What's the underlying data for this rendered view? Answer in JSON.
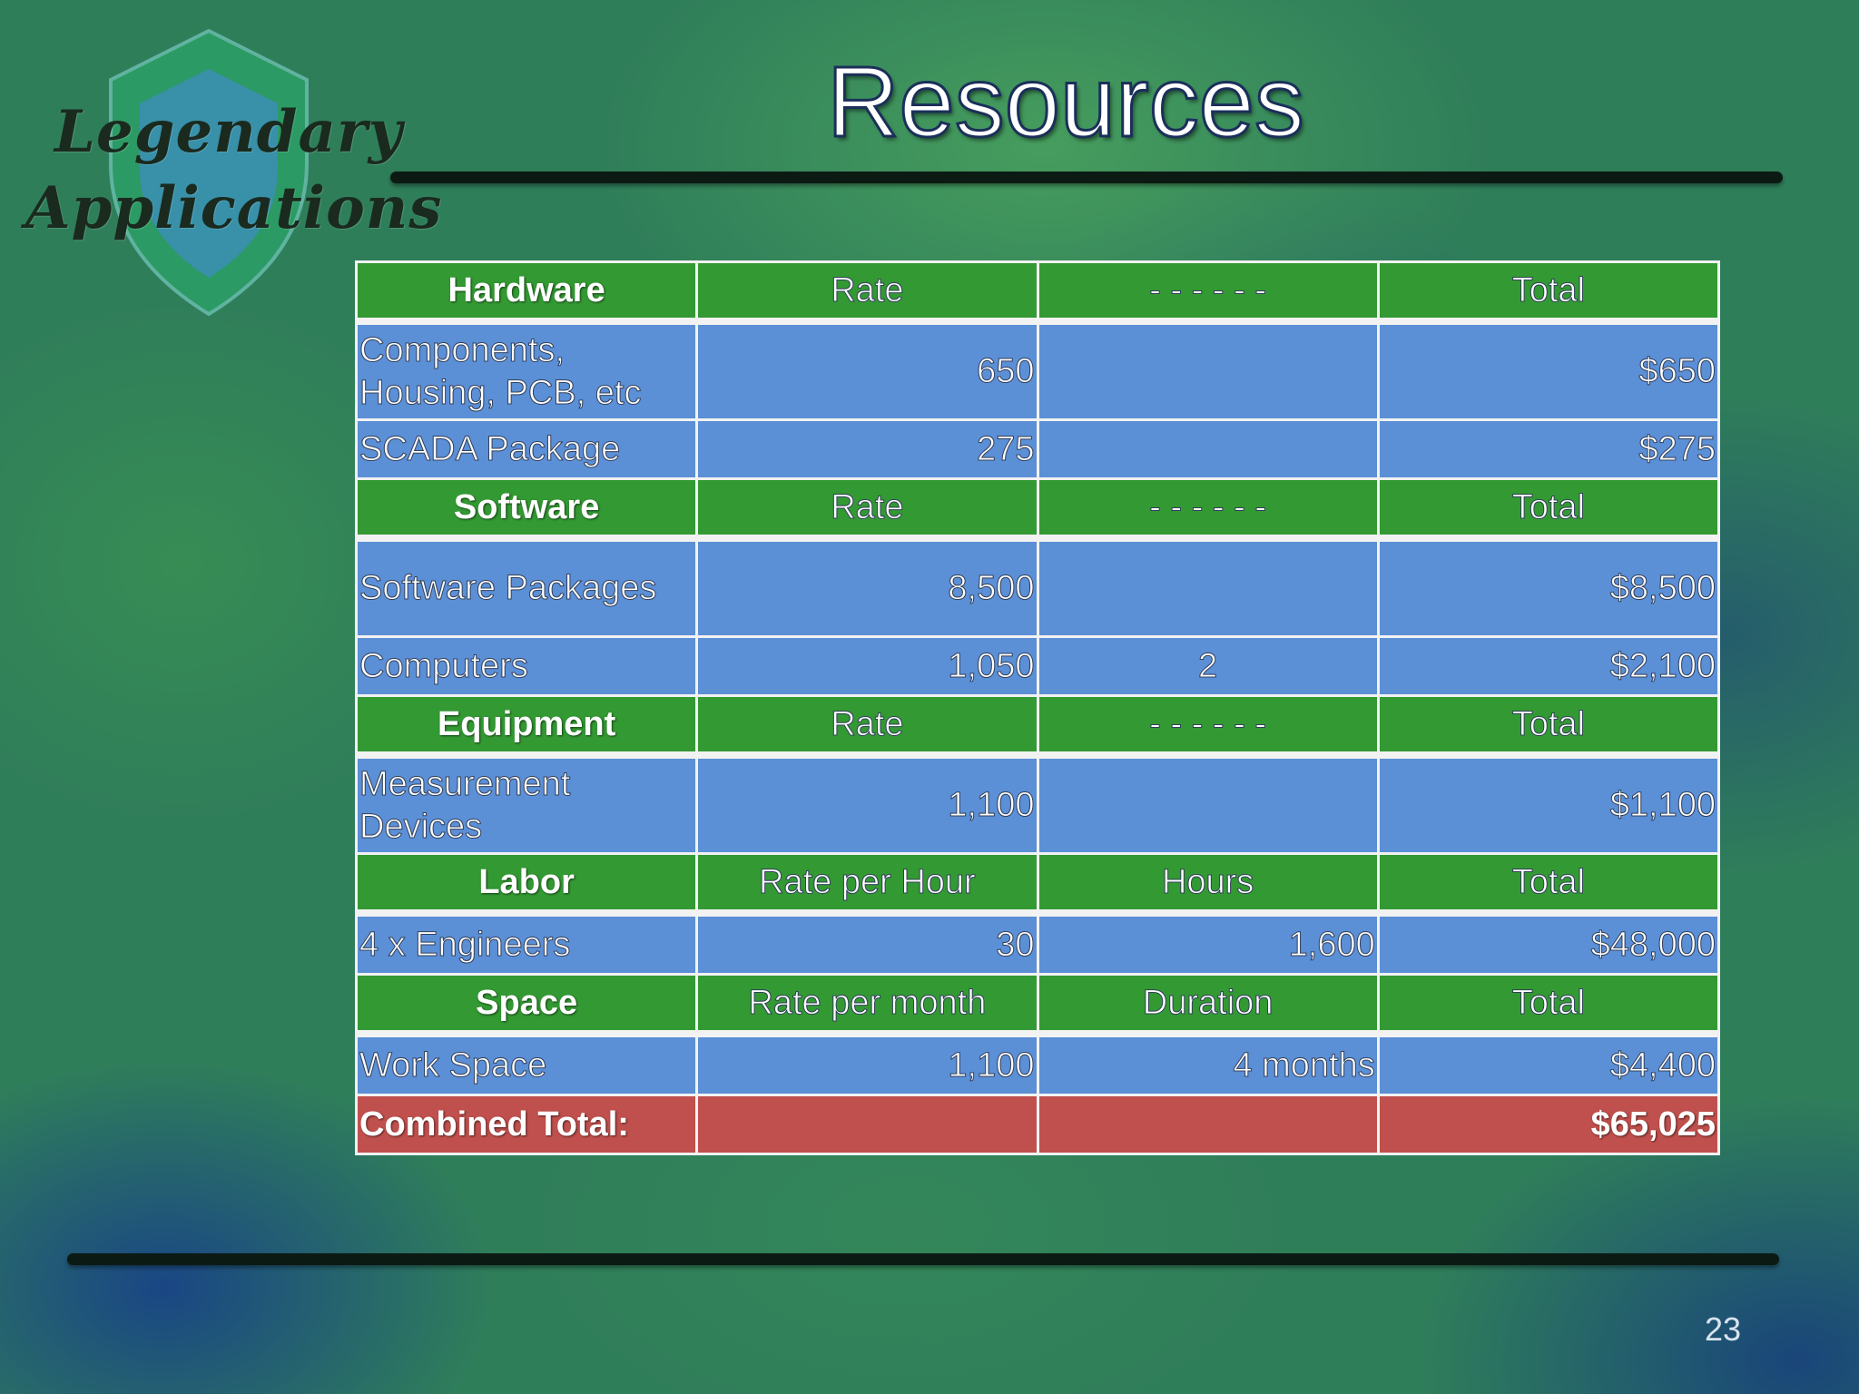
{
  "logo": {
    "line1": "Legendary",
    "line2": "Applications",
    "shield_color": "#3a8fb0"
  },
  "title": "Resources",
  "sections": [
    {
      "category": "Hardware",
      "col1": "Rate",
      "col2": "- - - - - -",
      "col3": "Total",
      "rows": [
        {
          "desc": "Components, Housing, PCB, etc",
          "c1": "650",
          "c2": "",
          "c3": "$650"
        },
        {
          "desc": "SCADA Package",
          "c1": "275",
          "c2": "",
          "c3": "$275"
        }
      ]
    },
    {
      "category": "Software",
      "col1": "Rate",
      "col2": "- - - - - -",
      "col3": "Total",
      "rows": [
        {
          "desc": "Software Packages",
          "c1": "8,500",
          "c2": "",
          "c3": "$8,500"
        },
        {
          "desc": "Computers",
          "c1": "1,050",
          "c2": "2",
          "c3": "$2,100"
        }
      ]
    },
    {
      "category": "Equipment",
      "col1": "Rate",
      "col2": "- - - - - -",
      "col3": "Total",
      "rows": [
        {
          "desc": "Measurement Devices",
          "c1": "1,100",
          "c2": "",
          "c3": "$1,100"
        }
      ]
    },
    {
      "category": "Labor",
      "col1": "Rate per Hour",
      "col2": "Hours",
      "col3": "Total",
      "rows": [
        {
          "desc": "4 x Engineers",
          "c1": "30",
          "c2": "1,600",
          "c3": "$48,000"
        }
      ]
    },
    {
      "category": "Space",
      "col1": "Rate per month",
      "col2": "Duration",
      "col3": "Total",
      "rows": [
        {
          "desc": "Work Space",
          "c1": "1,100",
          "c2": "4 months",
          "c3": "$4,400"
        }
      ]
    }
  ],
  "combined": {
    "label": "Combined Total:",
    "amount": "$65,025"
  },
  "page_number": "23",
  "colors": {
    "header_green": "#339933",
    "row_blue": "#5b8fd6",
    "total_red": "#c0504d"
  }
}
